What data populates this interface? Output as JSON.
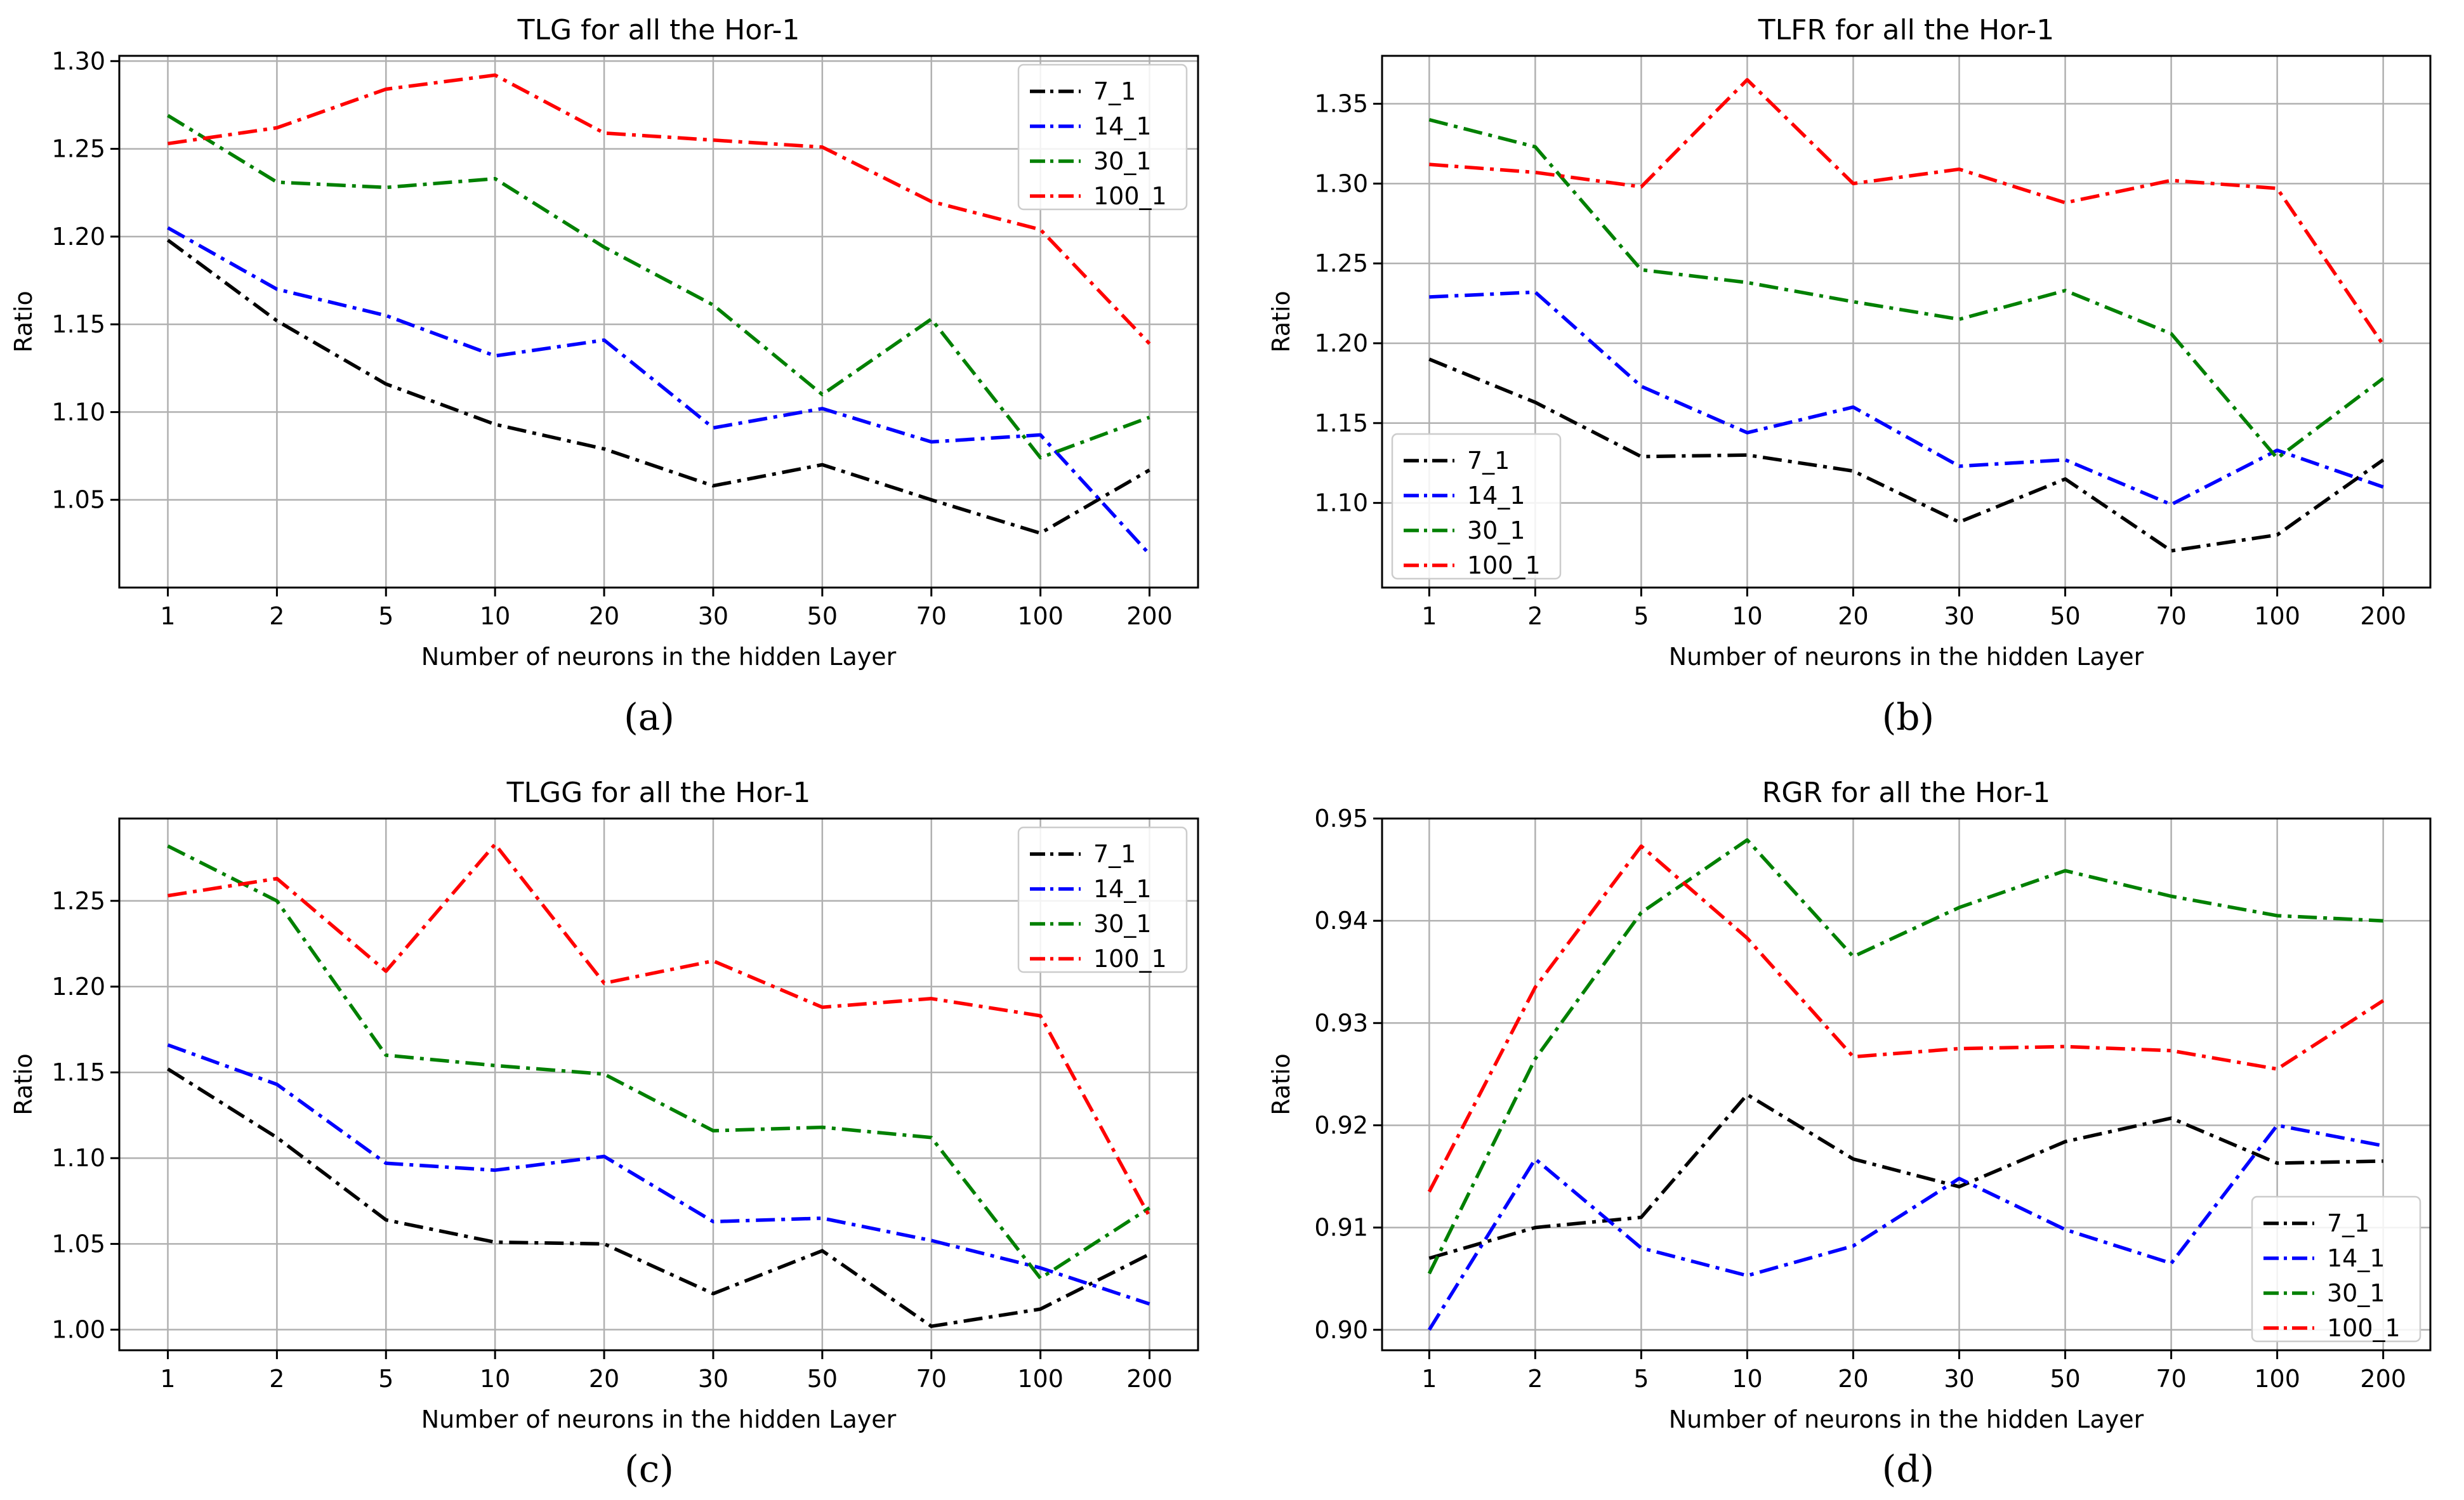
{
  "figure": {
    "panels": [
      "(a)",
      "(b)",
      "(c)",
      "(d)"
    ]
  },
  "chart_data": [
    {
      "type": "line",
      "title": "TLG for all the Hor-1",
      "xlabel": "Number of neurons in the hidden Layer",
      "ylabel": "Ratio",
      "categories": [
        "1",
        "2",
        "5",
        "10",
        "20",
        "30",
        "50",
        "70",
        "100",
        "200"
      ],
      "ylim": [
        1.0,
        1.303
      ],
      "yticks": [
        "1.05",
        "1.10",
        "1.15",
        "1.20",
        "1.25",
        "1.30"
      ],
      "grid": true,
      "legend_position": "top-right",
      "series": [
        {
          "name": "7_1",
          "color": "#000000",
          "values": [
            1.198,
            1.152,
            1.116,
            1.093,
            1.079,
            1.058,
            1.07,
            1.05,
            1.031,
            1.067
          ]
        },
        {
          "name": "14_1",
          "color": "#0000ff",
          "values": [
            1.205,
            1.17,
            1.155,
            1.132,
            1.141,
            1.091,
            1.102,
            1.083,
            1.087,
            1.019
          ]
        },
        {
          "name": "30_1",
          "color": "#008000",
          "values": [
            1.269,
            1.231,
            1.228,
            1.233,
            1.194,
            1.161,
            1.11,
            1.153,
            1.074,
            1.097
          ]
        },
        {
          "name": "100_1",
          "color": "#ff0000",
          "values": [
            1.253,
            1.262,
            1.284,
            1.292,
            1.259,
            1.255,
            1.251,
            1.22,
            1.204,
            1.139
          ]
        }
      ]
    },
    {
      "type": "line",
      "title": "TLFR for all the Hor-1",
      "xlabel": "Number of neurons in the hidden Layer",
      "ylabel": "Ratio",
      "categories": [
        "1",
        "2",
        "5",
        "10",
        "20",
        "30",
        "50",
        "70",
        "100",
        "200"
      ],
      "ylim": [
        1.047,
        1.38
      ],
      "yticks": [
        "1.10",
        "1.15",
        "1.20",
        "1.25",
        "1.30",
        "1.35"
      ],
      "grid": true,
      "legend_position": "bottom-left",
      "series": [
        {
          "name": "7_1",
          "color": "#000000",
          "values": [
            1.19,
            1.163,
            1.129,
            1.13,
            1.12,
            1.088,
            1.115,
            1.07,
            1.08,
            1.127
          ]
        },
        {
          "name": "14_1",
          "color": "#0000ff",
          "values": [
            1.229,
            1.232,
            1.173,
            1.144,
            1.16,
            1.123,
            1.127,
            1.099,
            1.133,
            1.11
          ]
        },
        {
          "name": "30_1",
          "color": "#008000",
          "values": [
            1.34,
            1.323,
            1.246,
            1.238,
            1.226,
            1.215,
            1.233,
            1.206,
            1.128,
            1.178
          ]
        },
        {
          "name": "100_1",
          "color": "#ff0000",
          "values": [
            1.312,
            1.307,
            1.298,
            1.365,
            1.3,
            1.309,
            1.288,
            1.302,
            1.297,
            1.199
          ]
        }
      ]
    },
    {
      "type": "line",
      "title": "TLGG for all the Hor-1",
      "xlabel": "Number of neurons in the hidden Layer",
      "ylabel": "Ratio",
      "categories": [
        "1",
        "2",
        "5",
        "10",
        "20",
        "30",
        "50",
        "70",
        "100",
        "200"
      ],
      "ylim": [
        0.988,
        1.298
      ],
      "yticks": [
        "1.00",
        "1.05",
        "1.10",
        "1.15",
        "1.20",
        "1.25"
      ],
      "grid": true,
      "legend_position": "top-right",
      "series": [
        {
          "name": "7_1",
          "color": "#000000",
          "values": [
            1.152,
            1.112,
            1.064,
            1.051,
            1.05,
            1.021,
            1.046,
            1.002,
            1.012,
            1.044
          ]
        },
        {
          "name": "14_1",
          "color": "#0000ff",
          "values": [
            1.166,
            1.143,
            1.097,
            1.093,
            1.101,
            1.063,
            1.065,
            1.052,
            1.036,
            1.015
          ]
        },
        {
          "name": "30_1",
          "color": "#008000",
          "values": [
            1.282,
            1.25,
            1.16,
            1.154,
            1.149,
            1.116,
            1.118,
            1.112,
            1.03,
            1.071
          ]
        },
        {
          "name": "100_1",
          "color": "#ff0000",
          "values": [
            1.253,
            1.263,
            1.209,
            1.283,
            1.202,
            1.215,
            1.188,
            1.193,
            1.183,
            1.066
          ]
        }
      ]
    },
    {
      "type": "line",
      "title": "RGR for all the Hor-1",
      "xlabel": "Number of neurons in the hidden Layer",
      "ylabel": "Ratio",
      "categories": [
        "1",
        "2",
        "5",
        "10",
        "20",
        "30",
        "50",
        "70",
        "100",
        "200"
      ],
      "ylim": [
        0.898,
        0.95
      ],
      "yticks": [
        "0.90",
        "0.91",
        "0.92",
        "0.93",
        "0.94",
        "0.95"
      ],
      "grid": true,
      "legend_position": "bottom-right",
      "series": [
        {
          "name": "7_1",
          "color": "#000000",
          "values": [
            0.907,
            0.91,
            0.911,
            0.923,
            0.9167,
            0.914,
            0.9184,
            0.9207,
            0.9163,
            0.9165
          ]
        },
        {
          "name": "14_1",
          "color": "#0000ff",
          "values": [
            0.9,
            0.9167,
            0.908,
            0.9053,
            0.9082,
            0.9148,
            0.9098,
            0.9065,
            0.92,
            0.918
          ]
        },
        {
          "name": "30_1",
          "color": "#008000",
          "values": [
            0.9055,
            0.9265,
            0.9408,
            0.9479,
            0.9365,
            0.9413,
            0.9449,
            0.9424,
            0.9405,
            0.94
          ]
        },
        {
          "name": "100_1",
          "color": "#ff0000",
          "values": [
            0.9135,
            0.9335,
            0.9473,
            0.9383,
            0.9267,
            0.9275,
            0.9277,
            0.9273,
            0.9255,
            0.9322
          ]
        }
      ]
    }
  ]
}
